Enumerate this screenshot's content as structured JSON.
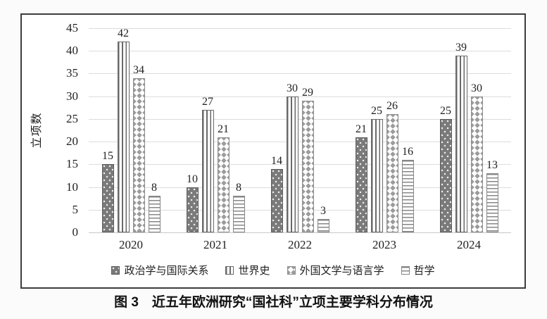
{
  "figure": {
    "caption": "图 3　近五年欧洲研究“国社科”立项主要学科分布情况"
  },
  "chart_data": {
    "type": "bar",
    "title": "",
    "xlabel": "",
    "ylabel": "立项数",
    "ylim": [
      0,
      45
    ],
    "ytick_step": 5,
    "grid": true,
    "legend_position": "bottom",
    "categories": [
      "2020",
      "2021",
      "2022",
      "2023",
      "2024"
    ],
    "series": [
      {
        "name": "政治学与国际关系",
        "values": [
          15,
          10,
          14,
          21,
          25
        ]
      },
      {
        "name": "世界史",
        "values": [
          42,
          27,
          30,
          25,
          39
        ]
      },
      {
        "name": "外国文学与语言学",
        "values": [
          34,
          21,
          29,
          26,
          30
        ]
      },
      {
        "name": "哲学",
        "values": [
          8,
          8,
          3,
          16,
          13
        ]
      }
    ]
  },
  "colors": {
    "grid": "#dcdcdc",
    "frame_border": "#3d3d3d",
    "text": "#1f1f1f",
    "series_dark": "#7a7a7a",
    "series_line": "#696969",
    "series_diamond": "#9c9c9c"
  }
}
